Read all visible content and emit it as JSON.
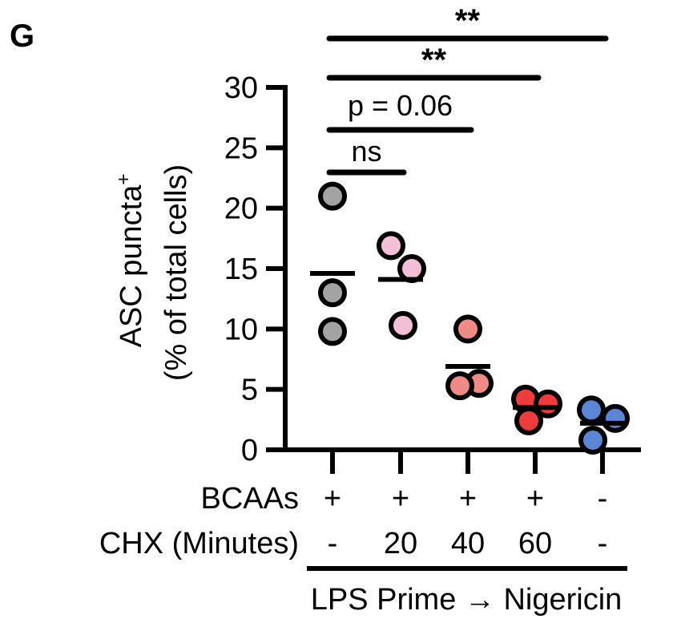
{
  "panel_label": "G",
  "chart_data": {
    "type": "scatter",
    "title": "",
    "ylabel_line1": "ASC puncta",
    "ylabel_superscript": "+",
    "ylabel_line2": "(% of total cells)",
    "ylim": [
      0,
      30
    ],
    "yticks": [
      0,
      5,
      10,
      15,
      20,
      25,
      30
    ],
    "ytick_labels": [
      "0",
      "5",
      "10",
      "15",
      "20",
      "25",
      "30"
    ],
    "groups": [
      {
        "name": "BCAAs + / CHX -",
        "bcaas": "+",
        "chx": "-",
        "color": "#a3a3a3",
        "values": [
          21,
          13,
          9.8
        ],
        "mean": 14.6
      },
      {
        "name": "BCAAs + / CHX 20",
        "bcaas": "+",
        "chx": "20",
        "color": "#f2bfd6",
        "values": [
          16.9,
          15,
          10.3
        ],
        "mean": 14.1
      },
      {
        "name": "BCAAs + / CHX 40",
        "bcaas": "+",
        "chx": "40",
        "color": "#f08a86",
        "values": [
          10,
          5.5,
          5.3
        ],
        "mean": 6.9
      },
      {
        "name": "BCAAs + / CHX 60",
        "bcaas": "+",
        "chx": "60",
        "color": "#ee3b3b",
        "values": [
          4.2,
          3.8,
          2.4
        ],
        "mean": 3.5
      },
      {
        "name": "BCAAs - / CHX -",
        "bcaas": "-",
        "chx": "-",
        "color": "#5b86d6",
        "values": [
          3.3,
          2.6,
          0.8
        ],
        "mean": 2.2
      }
    ],
    "significance": [
      {
        "from": 0,
        "to": 1,
        "label": "ns"
      },
      {
        "from": 0,
        "to": 2,
        "label": "p = 0.06"
      },
      {
        "from": 0,
        "to": 3,
        "label": "**"
      },
      {
        "from": 0,
        "to": 4,
        "label": "**"
      }
    ]
  },
  "rows": {
    "bcaas_label": "BCAAs",
    "chx_label": "CHX (Minutes)"
  },
  "caption": "LPS Prime → Nigericin"
}
